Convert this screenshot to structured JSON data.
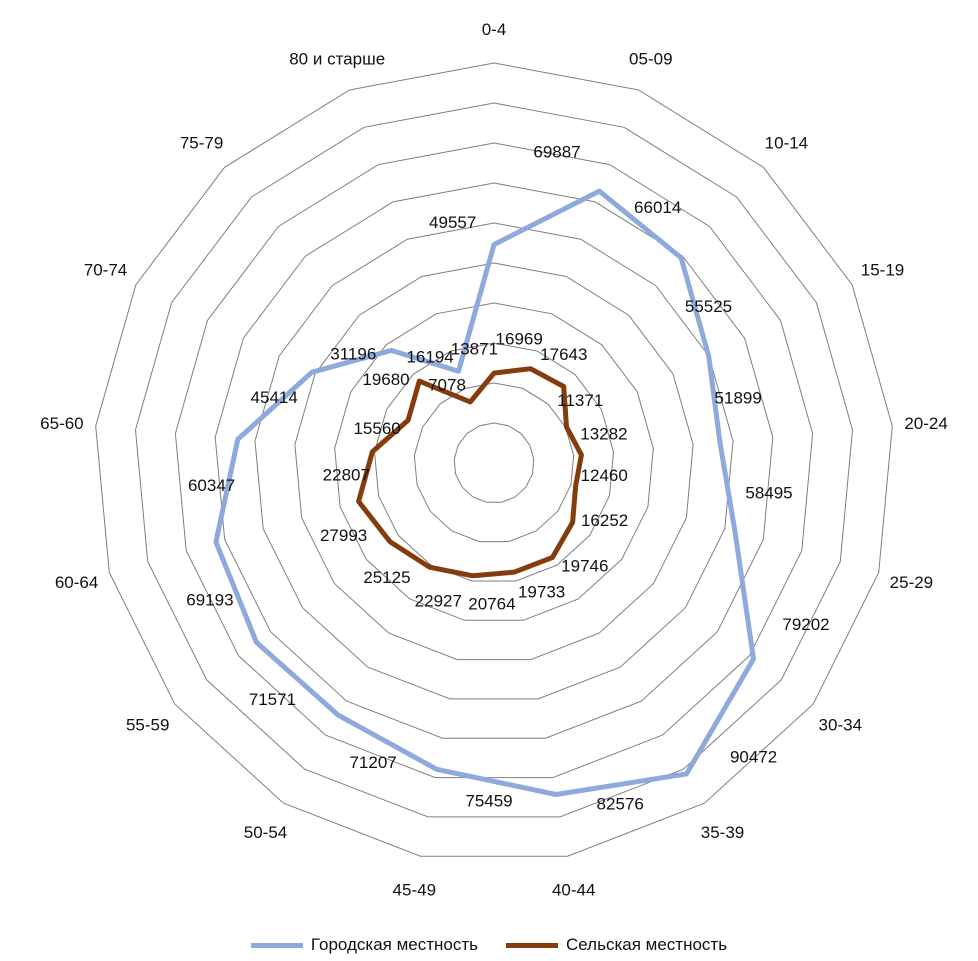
{
  "chart_data": {
    "type": "radar",
    "categories": [
      "0-4",
      "05-09",
      "10-14",
      "15-19",
      "20-24",
      "25-29",
      "30-34",
      "35-39",
      "40-44",
      "45-49",
      "50-54",
      "55-59",
      "60-64",
      "65-60",
      "70-74",
      "75-79",
      "80 и старше"
    ],
    "series": [
      {
        "name": "Городская местность",
        "color": "#8EA9DB",
        "values": [
          49557,
          69887,
          66014,
          55525,
          51899,
          58495,
          79202,
          90472,
          82576,
          75459,
          71207,
          71571,
          69193,
          60347,
          45414,
          31196,
          16194
        ],
        "value_labels": [
          "49557",
          "69887",
          "66014",
          "55525",
          "51899",
          "58495",
          "79202",
          "90472",
          "82576",
          "75459",
          "71207",
          "71571",
          "69193",
          "60347",
          "45414",
          "31196",
          "16194"
        ]
      },
      {
        "name": "Сельская местность",
        "color": "#843C0C",
        "values": [
          13871,
          16969,
          17643,
          11371,
          13282,
          12460,
          16252,
          19746,
          19733,
          20764,
          22927,
          25125,
          27993,
          22807,
          15560,
          19680,
          7078
        ],
        "value_labels": [
          "13871",
          "16969",
          "17643",
          "11371",
          "13282",
          "12460",
          "16252",
          "19746",
          "19733",
          "20764",
          "22927",
          "25125",
          "27993",
          "22807",
          "15560",
          "19680",
          "7078"
        ]
      }
    ],
    "rlim": [
      0,
      100000
    ],
    "grid": true,
    "gridline_count": 10,
    "legend_position": "bottom"
  }
}
